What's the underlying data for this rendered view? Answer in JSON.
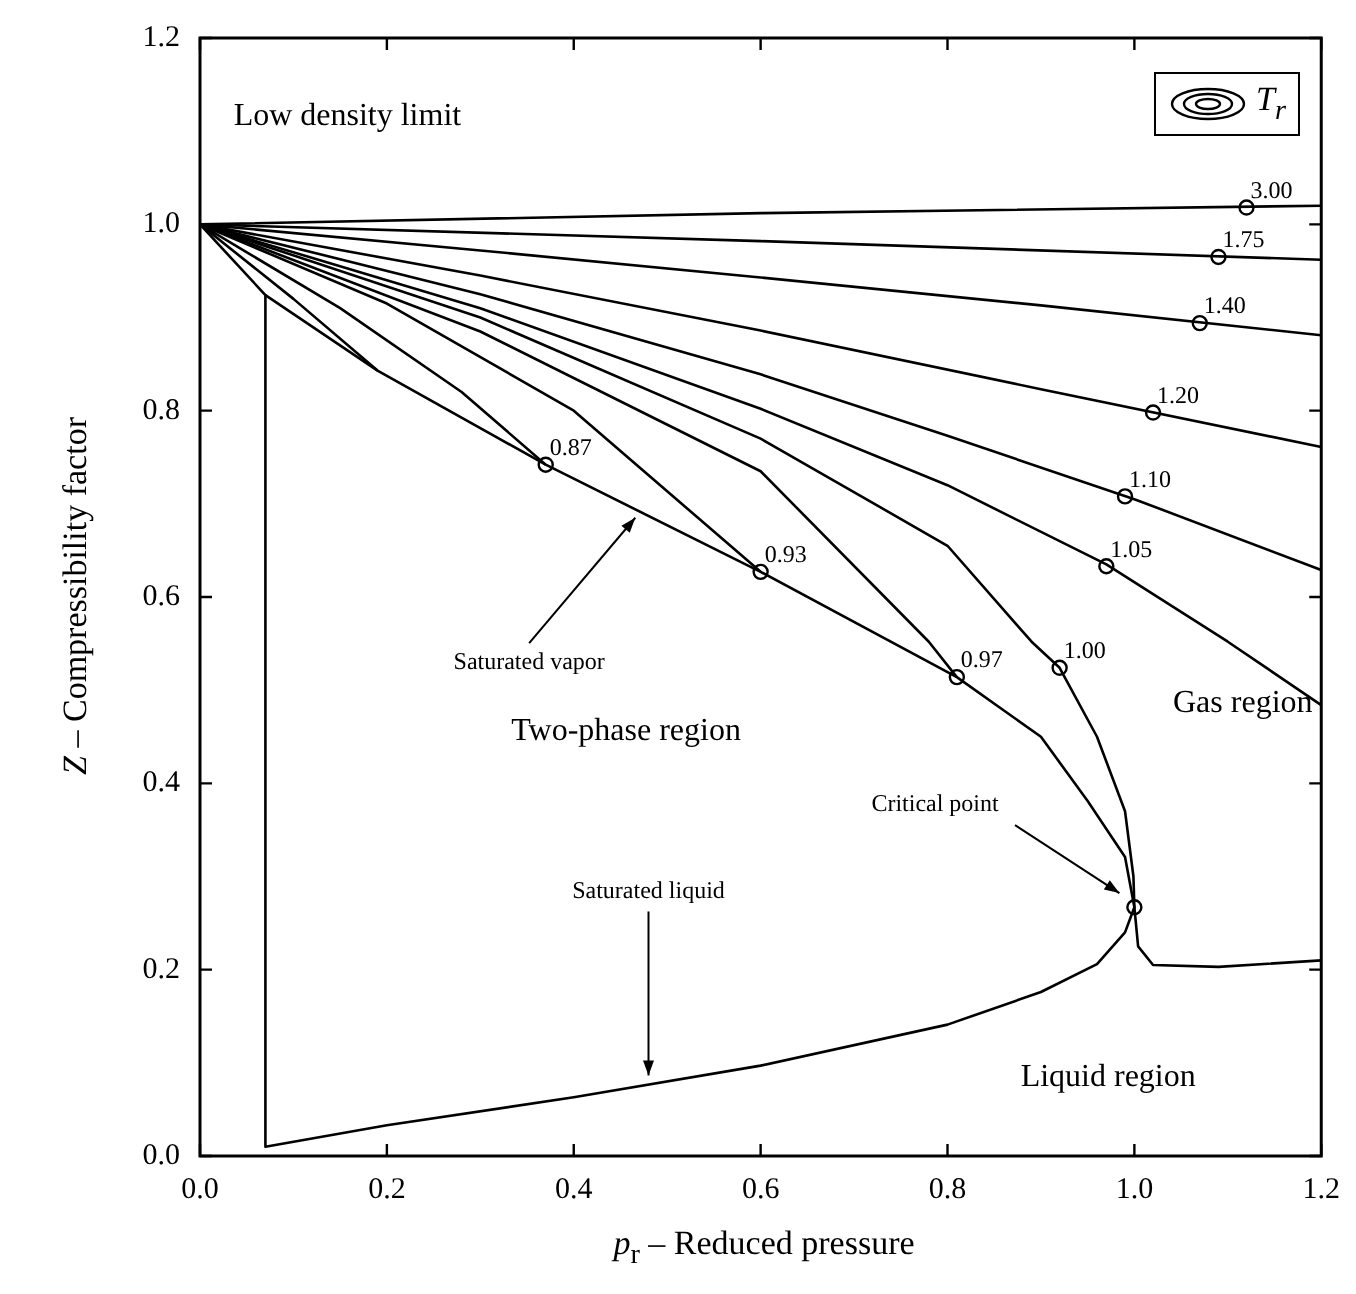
{
  "chart_data": {
    "type": "line",
    "xlabel": "p$_{r}$ – Reduced pressure",
    "ylabel": "Z – Compressibility factor",
    "legend_title": "T$_{r}$",
    "marker": "none",
    "line_style": "solid",
    "grid": false,
    "xlim": [
      0,
      1.2
    ],
    "xticks": [
      {
        "value": 0,
        "label": "0.0"
      },
      {
        "value": 0.2,
        "label": "0.2"
      },
      {
        "value": 0.4,
        "label": "0.4"
      },
      {
        "value": 0.6,
        "label": "0.6"
      },
      {
        "value": 0.8,
        "label": "0.8"
      },
      {
        "value": 1,
        "label": "1.0"
      },
      {
        "value": 1.2,
        "label": "1.2"
      }
    ],
    "ylim": [
      0,
      1.2
    ],
    "yticks": [
      {
        "value": 0,
        "label": "0.0"
      },
      {
        "value": 0.2,
        "label": "0.2"
      },
      {
        "value": 0.4,
        "label": "0.4"
      },
      {
        "value": 0.6,
        "label": "0.6"
      },
      {
        "value": 0.8,
        "label": "0.8"
      },
      {
        "value": 1,
        "label": "1.0"
      },
      {
        "value": 1.2,
        "label": "1.2"
      }
    ],
    "series": [
      {
        "color": "#000000",
        "x": [
          0,
          0.6,
          1.2
        ],
        "values": [
          1,
          1.012,
          1.02
        ]
      },
      {
        "color": "#000000",
        "x": [
          0,
          0.6,
          1.2
        ],
        "values": [
          1,
          0.982,
          0.962
        ]
      },
      {
        "color": "#000000",
        "x": [
          0,
          0.3,
          0.6,
          0.9,
          1.2
        ],
        "values": [
          1,
          0.972,
          0.943,
          0.913,
          0.881
        ]
      },
      {
        "color": "#000000",
        "x": [
          0,
          0.3,
          0.6,
          0.9,
          1.2
        ],
        "values": [
          1,
          0.945,
          0.886,
          0.823,
          0.761
        ]
      },
      {
        "color": "#000000",
        "x": [
          0,
          0.3,
          0.6,
          0.8,
          1,
          1.2
        ],
        "values": [
          1,
          0.925,
          0.839,
          0.773,
          0.705,
          0.629
        ]
      },
      {
        "color": "#000000",
        "x": [
          0,
          0.3,
          0.6,
          0.8,
          0.97,
          1.1,
          1.2
        ],
        "values": [
          1,
          0.91,
          0.802,
          0.72,
          0.635,
          0.552,
          0.484
        ]
      },
      {
        "color": "#000000",
        "x": [
          0,
          0.3,
          0.6,
          0.8,
          0.89,
          0.92,
          0.96,
          0.99,
          0.999,
          1,
          1.004,
          1.02,
          1.09,
          1.2
        ],
        "values": [
          1,
          0.9,
          0.77,
          0.655,
          0.552,
          0.524,
          0.45,
          0.37,
          0.3,
          0.267,
          0.225,
          0.205,
          0.203,
          0.21
        ]
      },
      {
        "color": "#000000",
        "x": [
          0,
          0.3,
          0.6,
          0.78,
          0.81
        ],
        "values": [
          1,
          0.885,
          0.735,
          0.552,
          0.514
        ]
      },
      {
        "color": "#000000",
        "x": [
          0,
          0.2,
          0.4,
          0.6
        ],
        "values": [
          1,
          0.915,
          0.8,
          0.627
        ]
      },
      {
        "color": "#000000",
        "x": [
          0,
          0.15,
          0.28,
          0.37
        ],
        "values": [
          1,
          0.91,
          0.82,
          0.742
        ]
      },
      {
        "color": "#000000",
        "x": [
          0,
          0.1,
          0.19
        ],
        "values": [
          1,
          0.92,
          0.843
        ]
      },
      {
        "color": "#000000",
        "x": [
          0,
          0.07,
          0.07
        ],
        "values": [
          1,
          0.924,
          0.01
        ]
      },
      {
        "color": "#000000",
        "x": [
          0.07,
          0.19,
          0.37,
          0.6,
          0.81,
          0.9,
          0.95,
          0.99,
          1
        ],
        "values": [
          0.924,
          0.843,
          0.742,
          0.627,
          0.514,
          0.45,
          0.381,
          0.321,
          0.267
        ]
      },
      {
        "color": "#000000",
        "x": [
          0.07,
          0.2,
          0.4,
          0.6,
          0.8,
          0.9,
          0.96,
          0.99,
          1
        ],
        "values": [
          0.01,
          0.033,
          0.063,
          0.097,
          0.141,
          0.176,
          0.206,
          0.24,
          0.267
        ]
      },
      {
        "type": "scatter",
        "marker": "circle",
        "color": "#000000",
        "x": [
          1.12,
          1.09,
          1.07,
          1.02,
          0.99,
          0.97,
          0.92,
          0.81,
          0.6,
          0.37,
          1
        ],
        "values": [
          1.018,
          0.965,
          0.894,
          0.798,
          0.708,
          0.633,
          0.524,
          0.514,
          0.627,
          0.742,
          0.267
        ]
      }
    ],
    "annotations": [
      "Low density limit",
      "Two-phase region",
      "Gas region",
      "Liquid region",
      {
        "text": "3.00",
        "x": 1.12,
        "y": 1.018
      },
      {
        "text": "1.75",
        "x": 1.09,
        "y": 0.965
      },
      {
        "text": "1.40",
        "x": 1.07,
        "y": 0.894
      },
      {
        "text": "1.20",
        "x": 1.02,
        "y": 0.798
      },
      {
        "text": "1.10",
        "x": 0.99,
        "y": 0.708
      },
      {
        "text": "1.05",
        "x": 0.97,
        "y": 0.633
      },
      {
        "text": "1.00",
        "x": 0.92,
        "y": 0.524
      },
      {
        "text": "0.97",
        "x": 0.81,
        "y": 0.514
      },
      {
        "text": "0.93",
        "x": 0.6,
        "y": 0.627
      },
      {
        "text": "0.87",
        "x": 0.37,
        "y": 0.742
      },
      {
        "text": "Saturated vapor",
        "x": 0.47,
        "y": 0.69
      },
      {
        "text": "Critical point",
        "x": 0.99,
        "y": 0.28
      },
      {
        "text": "Saturated liquid",
        "x": 0.48,
        "y": 0.08
      }
    ]
  }
}
